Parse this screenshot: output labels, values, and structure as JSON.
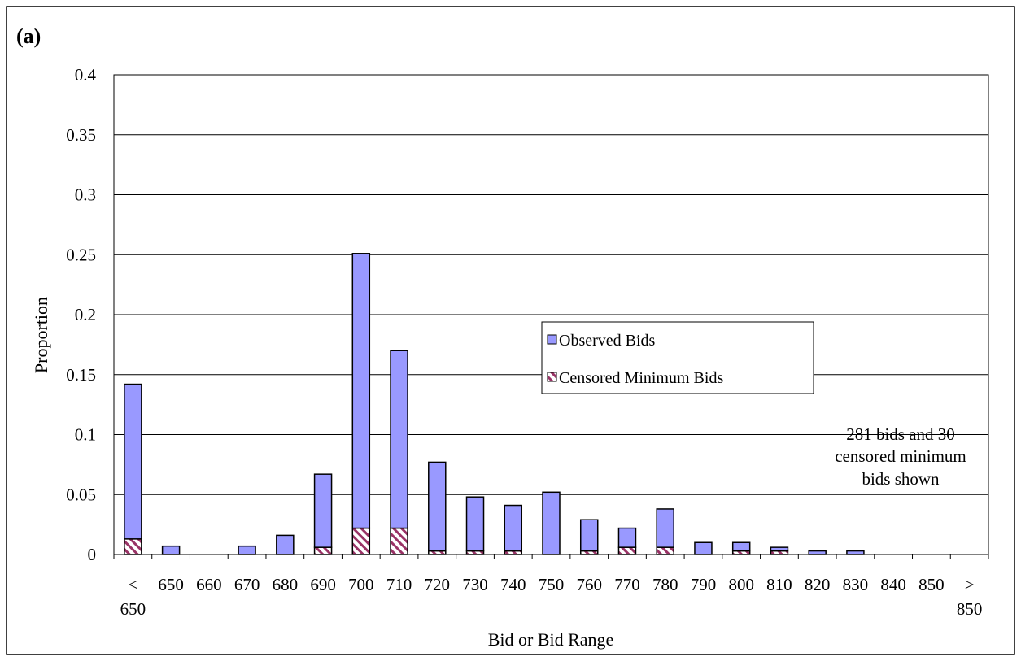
{
  "panel_label": "(a)",
  "annotation": [
    "281 bids and 30",
    "censored minimum",
    "bids shown"
  ],
  "colors": {
    "observed_fill": "#9999FF",
    "censored_stripe": "#993366",
    "gridline": "#000000"
  },
  "chart_data": {
    "type": "bar",
    "stacked": true,
    "xlabel": "Bid or Bid Range",
    "ylabel": "Proportion",
    "ylim": [
      0,
      0.4
    ],
    "yticks": [
      "0",
      "0.05",
      "0.1",
      "0.15",
      "0.2",
      "0.25",
      "0.3",
      "0.35",
      "0.4"
    ],
    "ytick_values": [
      0,
      0.05,
      0.1,
      0.15,
      0.2,
      0.25,
      0.3,
      0.35,
      0.4
    ],
    "grid": true,
    "legend_position": "center-right",
    "categories": [
      "< 650",
      "650",
      "660",
      "670",
      "680",
      "690",
      "700",
      "710",
      "720",
      "730",
      "740",
      "750",
      "760",
      "770",
      "780",
      "790",
      "800",
      "810",
      "820",
      "830",
      "840",
      "850",
      "> 850"
    ],
    "category_labels": [
      [
        "<",
        "650"
      ],
      [
        "650"
      ],
      [
        "660"
      ],
      [
        "670"
      ],
      [
        "680"
      ],
      [
        "690"
      ],
      [
        "700"
      ],
      [
        "710"
      ],
      [
        "720"
      ],
      [
        "730"
      ],
      [
        "740"
      ],
      [
        "750"
      ],
      [
        "760"
      ],
      [
        "770"
      ],
      [
        "780"
      ],
      [
        "790"
      ],
      [
        "800"
      ],
      [
        "810"
      ],
      [
        "820"
      ],
      [
        "830"
      ],
      [
        "840"
      ],
      [
        "850"
      ],
      [
        ">",
        "850"
      ]
    ],
    "series": [
      {
        "name": "Observed Bids",
        "values": [
          0.129,
          0.007,
          0,
          0.007,
          0.016,
          0.061,
          0.229,
          0.148,
          0.074,
          0.045,
          0.038,
          0.052,
          0.026,
          0.016,
          0.032,
          0.01,
          0.007,
          0.003,
          0.003,
          0.003,
          0,
          0,
          0
        ]
      },
      {
        "name": "Censored Minimum Bids",
        "values": [
          0.013,
          0,
          0,
          0,
          0,
          0.006,
          0.022,
          0.022,
          0.003,
          0.003,
          0.003,
          0,
          0.003,
          0.006,
          0.006,
          0,
          0.003,
          0.003,
          0,
          0,
          0,
          0,
          0
        ]
      }
    ]
  }
}
